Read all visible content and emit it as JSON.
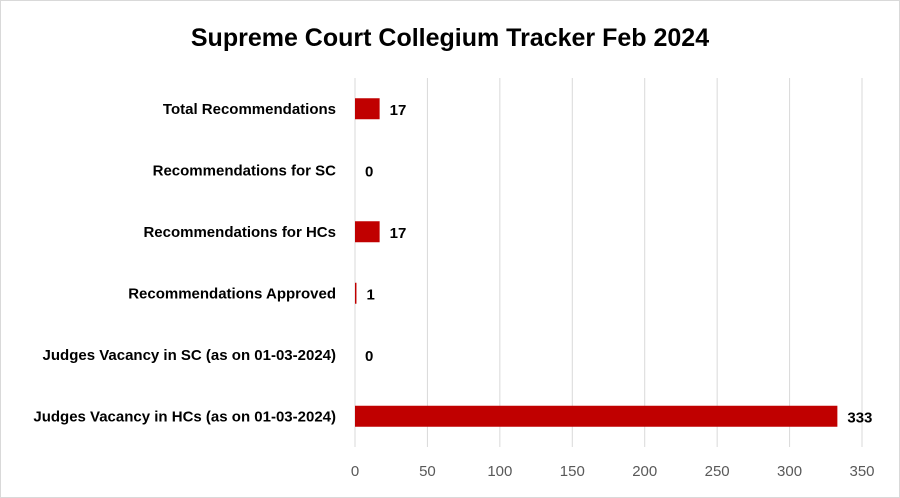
{
  "chart_data": {
    "type": "bar",
    "orientation": "horizontal",
    "title": "Supreme Court Collegium Tracker Feb 2024",
    "categories": [
      "Total Recommendations",
      "Recommendations for SC",
      "Recommendations for HCs",
      "Recommendations Approved",
      "Judges Vacancy in SC (as on 01-03-2024)",
      "Judges Vacancy in HCs (as on 01-03-2024)"
    ],
    "values": [
      17,
      0,
      17,
      1,
      0,
      333
    ],
    "xlim": [
      0,
      350
    ],
    "xticks": [
      0,
      50,
      100,
      150,
      200,
      250,
      300,
      350
    ],
    "grid": "vertical",
    "legend": "none",
    "bar_color": "#c00000",
    "grid_color": "#d9d9d9"
  }
}
